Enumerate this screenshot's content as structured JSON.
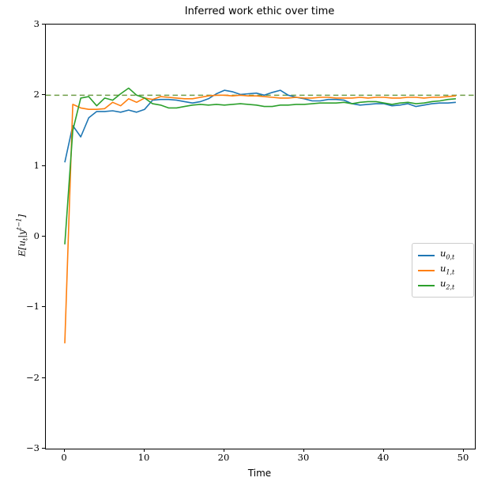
{
  "figure": {
    "title": "Inferred work ethic over time",
    "xlabel": "Time",
    "ylabel_parts": {
      "prefix": "E[",
      "var1": "u",
      "var1_sub": "t",
      "bar": "|",
      "var2": "y",
      "var2_sup": "t−1",
      "suffix": "]"
    }
  },
  "chart_data": {
    "type": "line",
    "title": "Inferred work ethic over time",
    "xlabel": "Time",
    "ylabel": "E[u_t|y^{t-1}]",
    "xlim": [
      -2.45,
      51.45
    ],
    "ylim": [
      -3,
      3
    ],
    "x_ticks": [
      0,
      10,
      20,
      30,
      40,
      50
    ],
    "y_ticks": [
      -3,
      -2,
      -1,
      0,
      1,
      2,
      3
    ],
    "grid": false,
    "legend_position": "center right",
    "reference_line": {
      "y": 2.0,
      "style": "dashed",
      "color": "#6f9e48"
    },
    "x": [
      0,
      1,
      2,
      3,
      4,
      5,
      6,
      7,
      8,
      9,
      10,
      11,
      12,
      13,
      14,
      15,
      16,
      17,
      18,
      19,
      20,
      21,
      22,
      23,
      24,
      25,
      26,
      27,
      28,
      29,
      30,
      31,
      32,
      33,
      34,
      35,
      36,
      37,
      38,
      39,
      40,
      41,
      42,
      43,
      44,
      45,
      46,
      47,
      48,
      49
    ],
    "series": [
      {
        "name": "u_{0,t}",
        "label_base": "u",
        "label_sub": "0,t",
        "color": "#1f77b4",
        "values": [
          1.05,
          1.57,
          1.41,
          1.68,
          1.77,
          1.77,
          1.78,
          1.76,
          1.79,
          1.76,
          1.8,
          1.93,
          1.94,
          1.94,
          1.93,
          1.91,
          1.89,
          1.91,
          1.95,
          2.02,
          2.07,
          2.05,
          2.01,
          2.02,
          2.03,
          2.0,
          2.04,
          2.07,
          2.0,
          1.97,
          1.95,
          1.92,
          1.92,
          1.94,
          1.94,
          1.93,
          1.88,
          1.86,
          1.87,
          1.88,
          1.88,
          1.85,
          1.86,
          1.88,
          1.84,
          1.86,
          1.88,
          1.89,
          1.89,
          1.9
        ]
      },
      {
        "name": "u_{1,t}",
        "label_base": "u",
        "label_sub": "1,t",
        "color": "#ff7f0e",
        "values": [
          -1.51,
          1.87,
          1.82,
          1.8,
          1.8,
          1.81,
          1.9,
          1.85,
          1.95,
          1.9,
          1.96,
          1.94,
          1.98,
          1.97,
          1.96,
          1.95,
          1.95,
          1.97,
          1.99,
          2.0,
          2.0,
          1.99,
          2.0,
          1.99,
          1.99,
          1.98,
          1.97,
          1.96,
          1.96,
          1.97,
          1.96,
          1.96,
          1.97,
          1.97,
          1.96,
          1.96,
          1.96,
          1.97,
          1.96,
          1.97,
          1.97,
          1.96,
          1.96,
          1.97,
          1.97,
          1.96,
          1.97,
          1.97,
          1.98,
          1.99
        ]
      },
      {
        "name": "u_{2,t}",
        "label_base": "u",
        "label_sub": "2,t",
        "color": "#2ca02c",
        "values": [
          -0.11,
          1.5,
          1.96,
          1.98,
          1.85,
          1.96,
          1.93,
          2.02,
          2.1,
          2.0,
          1.96,
          1.88,
          1.86,
          1.82,
          1.82,
          1.84,
          1.86,
          1.87,
          1.86,
          1.87,
          1.86,
          1.87,
          1.88,
          1.87,
          1.86,
          1.84,
          1.84,
          1.86,
          1.86,
          1.87,
          1.87,
          1.88,
          1.89,
          1.89,
          1.89,
          1.9,
          1.88,
          1.9,
          1.91,
          1.91,
          1.89,
          1.87,
          1.89,
          1.9,
          1.88,
          1.89,
          1.91,
          1.92,
          1.94,
          1.95
        ]
      }
    ]
  }
}
